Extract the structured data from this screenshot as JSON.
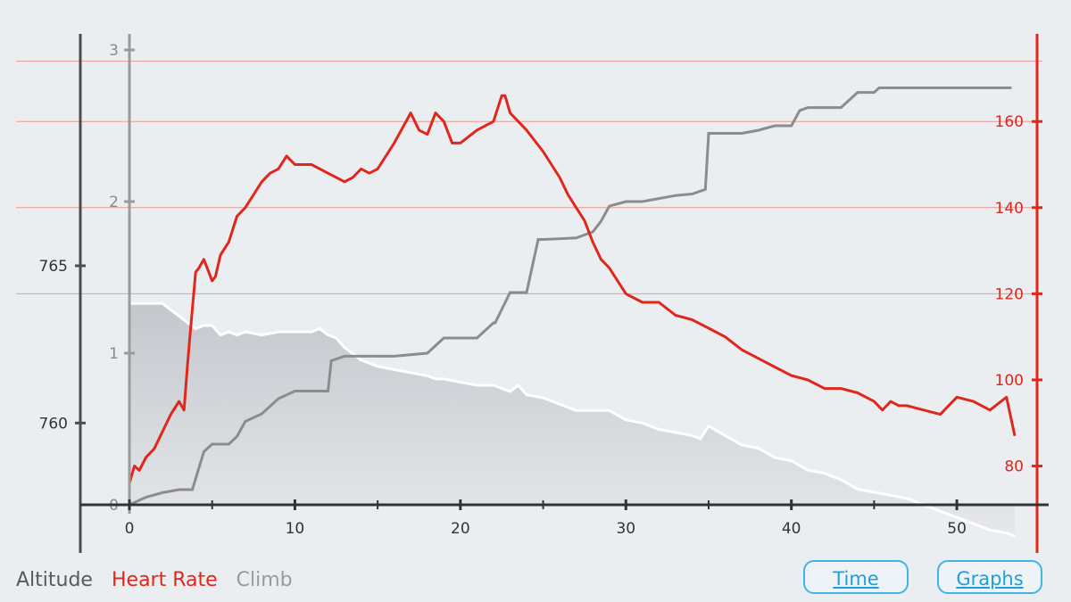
{
  "legend": {
    "altitude": "Altitude",
    "heart_rate": "Heart Rate",
    "climb": "Climb"
  },
  "buttons": {
    "time": "Time",
    "graphs": "Graphs"
  },
  "colors": {
    "altitude_fill": "#cdd0d6",
    "altitude_line": "#ffffff",
    "heart_rate": "#e1261c",
    "climb": "#8c8c8c",
    "axis": "#444444",
    "button": "#3fb4e6"
  },
  "chart_data": {
    "type": "line",
    "x_axis": {
      "ticks": [
        "0",
        "10",
        "20",
        "30",
        "40",
        "50"
      ],
      "min": 0,
      "max": 53.5
    },
    "altitude_axis": {
      "ticks": [
        "760",
        "765"
      ],
      "min": 757.4,
      "max": 772.6
    },
    "climb_axis": {
      "ticks": [
        "0",
        "1",
        "2",
        "3"
      ],
      "min": 0,
      "max": 3
    },
    "heart_rate_axis": {
      "ticks": [
        "80",
        "100",
        "120",
        "140",
        "160"
      ],
      "min": 71,
      "max": 182
    },
    "grid": "horizontal lines at heart rate axis",
    "series": [
      {
        "key": "altitude",
        "style": "area",
        "x": [
          0,
          1,
          2,
          2.5,
          3,
          3.5,
          4,
          4.5,
          5,
          5.5,
          6,
          6.5,
          7,
          8,
          9,
          10,
          11,
          11.5,
          12,
          12.5,
          13,
          14,
          15,
          16,
          17,
          18,
          18.5,
          19,
          20,
          21,
          22,
          23,
          23.5,
          24,
          25,
          26,
          27,
          28,
          29,
          30,
          31,
          32,
          33,
          34,
          34.5,
          35,
          36,
          37,
          38,
          39,
          40,
          41,
          42,
          43,
          44,
          45,
          46,
          47,
          48,
          49,
          50,
          51,
          52,
          53,
          53.5
        ],
        "y": [
          763.8,
          763.8,
          763.8,
          763.6,
          763.4,
          763.2,
          763.0,
          763.1,
          763.1,
          762.8,
          762.9,
          762.8,
          762.9,
          762.8,
          762.9,
          762.9,
          762.9,
          763.0,
          762.8,
          762.7,
          762.4,
          762.0,
          761.8,
          761.7,
          761.6,
          761.5,
          761.4,
          761.4,
          761.3,
          761.2,
          761.2,
          761.0,
          761.2,
          760.9,
          760.8,
          760.6,
          760.4,
          760.4,
          760.4,
          760.1,
          760.0,
          759.8,
          759.7,
          759.6,
          759.5,
          759.9,
          759.6,
          759.3,
          759.2,
          758.9,
          758.8,
          758.5,
          758.4,
          758.2,
          757.9,
          757.8,
          757.7,
          757.6,
          757.4,
          757.2,
          757.0,
          756.8,
          756.6,
          756.5,
          756.4
        ]
      },
      {
        "key": "climb",
        "style": "step",
        "x": [
          0,
          1,
          2,
          3,
          3.8,
          4.5,
          5,
          6,
          6.5,
          7,
          8,
          9,
          10,
          11,
          12,
          12.2,
          13,
          14,
          15,
          16,
          18,
          19,
          19.3,
          20,
          21,
          22,
          22.1,
          23,
          24,
          24.7,
          25,
          27,
          28,
          28.5,
          29,
          30,
          31,
          32,
          33,
          34,
          34.8,
          35,
          36,
          37,
          38,
          39,
          40,
          40.5,
          41,
          42,
          43,
          44,
          45,
          45.3,
          46,
          47,
          48,
          49,
          50,
          51,
          52,
          53,
          53.3
        ],
        "y": [
          0,
          0.05,
          0.08,
          0.1,
          0.1,
          0.35,
          0.4,
          0.4,
          0.45,
          0.55,
          0.6,
          0.7,
          0.75,
          0.75,
          0.75,
          0.95,
          0.98,
          0.98,
          0.98,
          0.98,
          1.0,
          1.1,
          1.1,
          1.1,
          1.1,
          1.2,
          1.2,
          1.4,
          1.4,
          1.75,
          1.75,
          1.76,
          1.8,
          1.87,
          1.97,
          2.0,
          2.0,
          2.02,
          2.04,
          2.05,
          2.08,
          2.45,
          2.45,
          2.45,
          2.47,
          2.5,
          2.5,
          2.6,
          2.62,
          2.62,
          2.62,
          2.72,
          2.72,
          2.75,
          2.75,
          2.75,
          2.75,
          2.75,
          2.75,
          2.75,
          2.75,
          2.75,
          2.75
        ]
      },
      {
        "key": "heart_rate",
        "style": "line",
        "x": [
          0,
          0.3,
          0.6,
          1,
          1.5,
          2,
          2.5,
          3,
          3.3,
          3.5,
          3.7,
          4,
          4.2,
          4.5,
          5,
          5.2,
          5.5,
          6,
          6.5,
          7,
          7.5,
          8,
          8.5,
          9,
          9.5,
          10,
          11,
          12,
          13,
          13.5,
          14,
          14.5,
          15,
          16,
          17,
          17.5,
          18,
          18.5,
          19,
          19.5,
          20,
          21,
          22,
          22.5,
          22.7,
          23,
          23.5,
          24,
          25,
          26,
          26.5,
          27,
          27.5,
          28,
          28.5,
          29,
          30,
          31,
          32,
          33,
          34,
          35,
          36,
          37,
          38,
          39,
          40,
          41,
          42,
          43,
          44,
          45,
          45.5,
          46,
          46.5,
          47,
          48,
          49,
          50,
          51,
          52,
          53,
          53.5
        ],
        "y": [
          76,
          80,
          79,
          82,
          84,
          88,
          92,
          95,
          93,
          103,
          112,
          125,
          126,
          128,
          123,
          124,
          129,
          132,
          138,
          140,
          143,
          146,
          148,
          149,
          152,
          150,
          150,
          148,
          146,
          147,
          149,
          148,
          149,
          155,
          162,
          158,
          157,
          162,
          160,
          155,
          155,
          158,
          160,
          166,
          166,
          162,
          160,
          158,
          153,
          147,
          143,
          140,
          137,
          132,
          128,
          126,
          120,
          118,
          118,
          115,
          114,
          112,
          110,
          107,
          105,
          103,
          101,
          100,
          98,
          98,
          97,
          95,
          93,
          95,
          94,
          94,
          93,
          92,
          96,
          95,
          93,
          96,
          87
        ]
      }
    ]
  }
}
